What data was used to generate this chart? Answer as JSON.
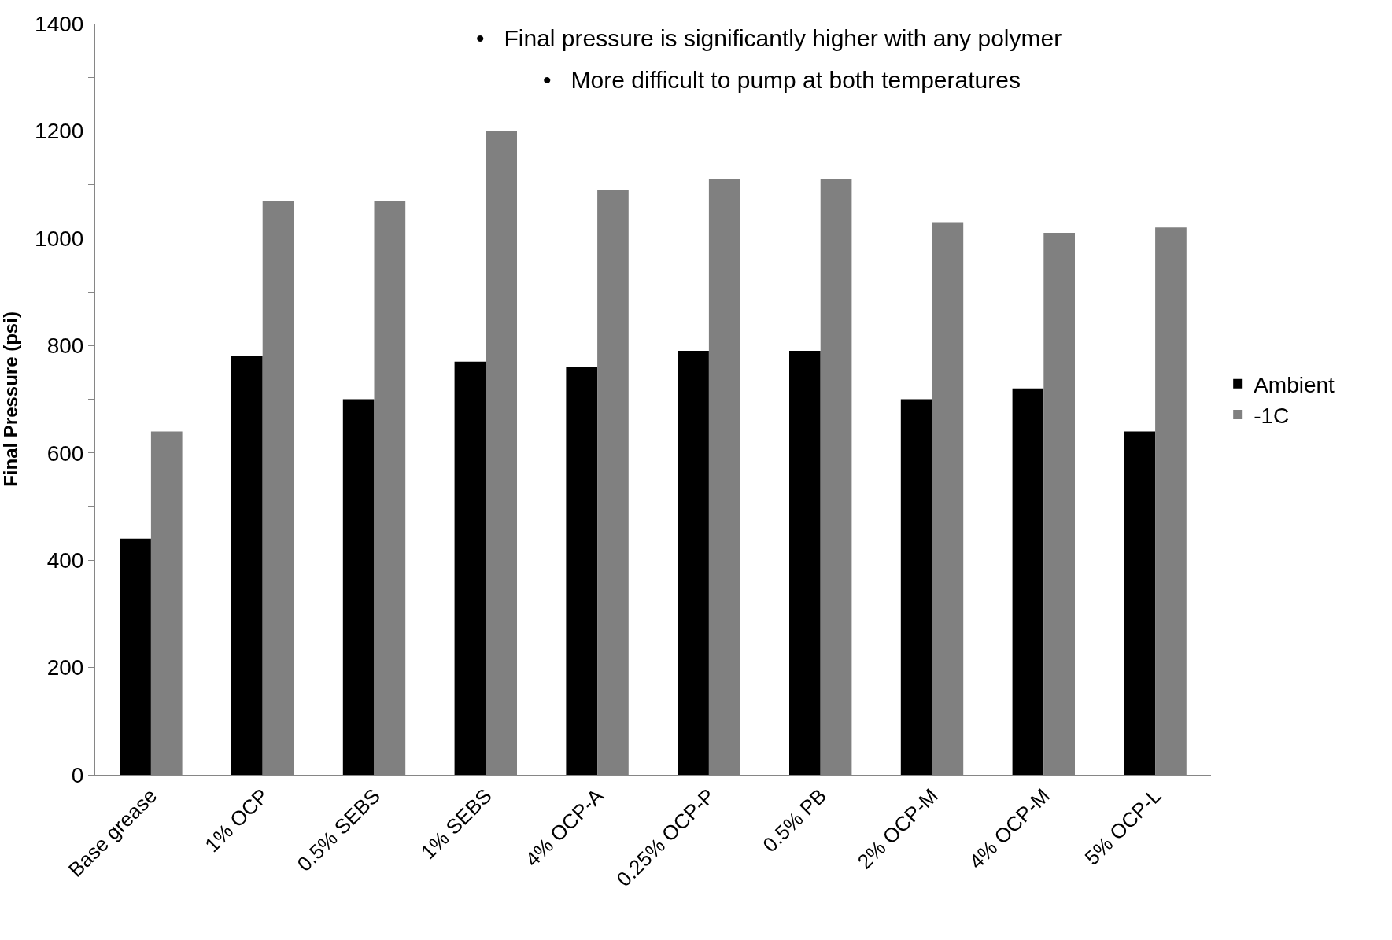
{
  "chart_data": {
    "type": "bar",
    "ylabel": "Final Pressure (psi)",
    "categories": [
      "Base grease",
      "1% OCP",
      "0.5% SEBS",
      "1% SEBS",
      "4% OCP-A",
      "0.25% OCP-P",
      "0.5% PB",
      "2% OCP-M",
      "4% OCP-M",
      "5% OCP-L"
    ],
    "series": [
      {
        "name": "Ambient",
        "color": "#000000",
        "values": [
          440,
          780,
          700,
          770,
          760,
          790,
          790,
          700,
          720,
          640
        ]
      },
      {
        "name": "-1C",
        "color": "#808080",
        "values": [
          640,
          1070,
          1070,
          1200,
          1090,
          1110,
          1110,
          1030,
          1010,
          1020
        ]
      }
    ],
    "ylim": [
      0,
      1400
    ],
    "yticks": [
      0,
      {
        "value": 100,
        "label": null
      },
      200,
      {
        "value": 300,
        "label": null
      },
      400,
      {
        "value": 500,
        "label": null
      },
      600,
      {
        "value": 700,
        "label": null
      },
      800,
      {
        "value": 900,
        "label": null
      },
      1000,
      {
        "value": 1100,
        "label": null
      },
      1200,
      {
        "value": 1300,
        "label": null
      },
      1400
    ],
    "legend": "right",
    "annotations": [
      "•   Final pressure is significantly higher with any polymer",
      "•   More difficult to pump at both temperatures"
    ]
  }
}
